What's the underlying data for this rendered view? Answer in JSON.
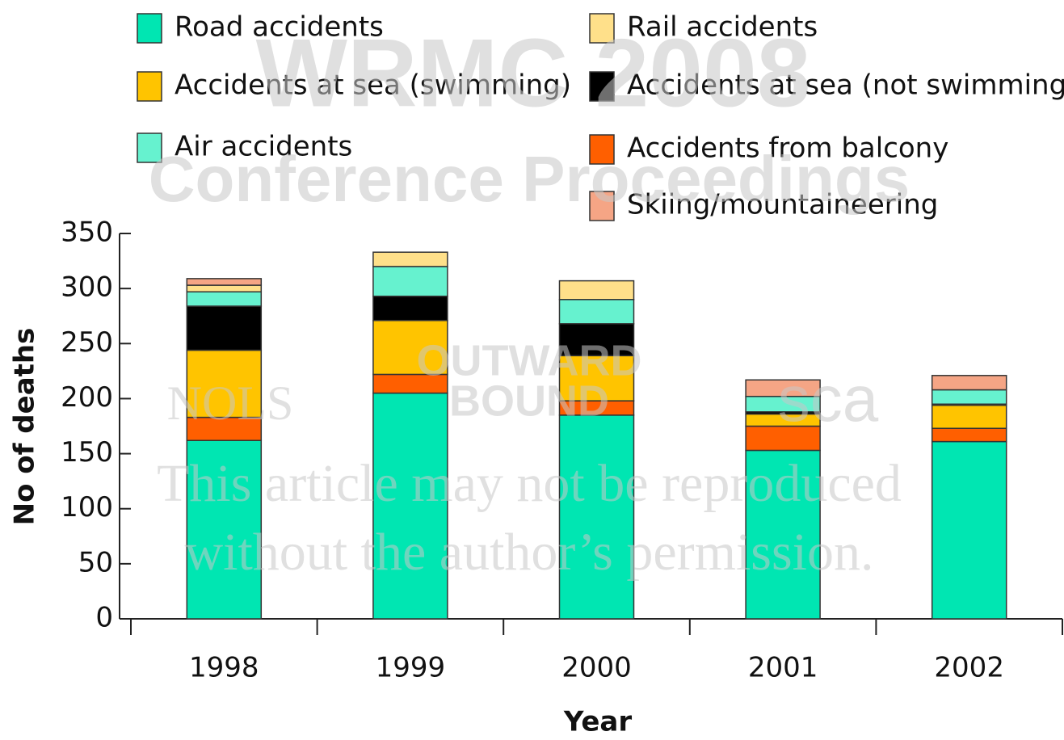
{
  "chart_data": {
    "type": "stacked_bar",
    "x_label": "Year",
    "y_label": "No of deaths",
    "categories": [
      "1998",
      "1999",
      "2000",
      "2001",
      "2002"
    ],
    "series": [
      {
        "name": "Road accidents",
        "color": "#00e6b2",
        "values": [
          162,
          205,
          185,
          153,
          161
        ]
      },
      {
        "name": "Accidents from balcony",
        "color": "#ff5f00",
        "values": [
          21,
          17,
          13,
          22,
          12
        ]
      },
      {
        "name": "Accidents at sea (swimming)",
        "color": "#ffc400",
        "values": [
          61,
          49,
          41,
          11,
          21
        ]
      },
      {
        "name": "Accidents at sea (not swimming)",
        "color": "#000000",
        "values": [
          40,
          22,
          29,
          2,
          1
        ]
      },
      {
        "name": "Air accidents",
        "color": "#66f2cf",
        "values": [
          13,
          27,
          22,
          14,
          13
        ]
      },
      {
        "name": "Rail accidents",
        "color": "#ffe08a",
        "values": [
          6,
          13,
          17,
          0,
          0
        ]
      },
      {
        "name": "Skiing/mountaineering",
        "color": "#f5a585",
        "values": [
          6,
          0,
          0,
          15,
          13
        ]
      }
    ],
    "ylim": [
      0,
      350
    ],
    "yticks": [
      0,
      50,
      100,
      150,
      200,
      250,
      300,
      350
    ],
    "watermarks": [
      "WRMC 2008",
      "Conference Proceedings",
      "This article may not be reproduced",
      "without the author’s permission.",
      "NOLS",
      "OUTWARD",
      "BOUND",
      "sca"
    ]
  }
}
